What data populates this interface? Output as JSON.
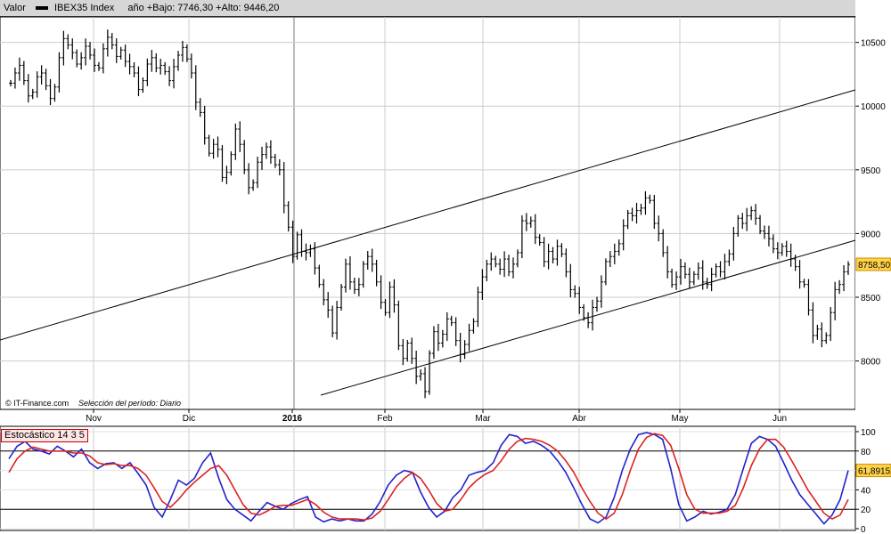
{
  "header": {
    "label_valor": "Valor",
    "series_name": "IBEX35 Index",
    "range_text": "año +Bajo: 7746,30 +Alto: 9446,20"
  },
  "footer": {
    "source": "© IT-Finance.com",
    "selection": "Selección del período: Diario"
  },
  "chart_data": [
    {
      "type": "ohlc",
      "name": "IBEX35 Index",
      "ylim": [
        7620,
        10700
      ],
      "y_ticks": [
        10500,
        10000,
        9500,
        9000,
        8500,
        8000
      ],
      "y_tick_labels": [
        "10500",
        "10000",
        "9500",
        "9000",
        "8500",
        "8000"
      ],
      "x_ticks": [
        "Nov",
        "Dic",
        "2016",
        "Feb",
        "Mar",
        "Abr",
        "May",
        "Jun"
      ],
      "last_value_label": "8758,50",
      "last_value": 8758.5,
      "grid": true,
      "closes": [
        10180,
        10260,
        10320,
        10200,
        10080,
        10110,
        10230,
        10260,
        10160,
        10060,
        10150,
        10380,
        10530,
        10480,
        10420,
        10330,
        10380,
        10470,
        10400,
        10320,
        10300,
        10450,
        10540,
        10480,
        10390,
        10440,
        10350,
        10310,
        10260,
        10130,
        10200,
        10330,
        10380,
        10300,
        10320,
        10270,
        10200,
        10310,
        10400,
        10460,
        10370,
        10260,
        10030,
        9950,
        9750,
        9630,
        9700,
        9660,
        9440,
        9480,
        9620,
        9820,
        9700,
        9500,
        9360,
        9400,
        9560,
        9620,
        9680,
        9600,
        9540,
        9500,
        9220,
        9050,
        8820,
        8990,
        8860,
        8850,
        8880,
        8730,
        8600,
        8480,
        8400,
        8220,
        8420,
        8580,
        8760,
        8620,
        8560,
        8600,
        8760,
        8820,
        8760,
        8620,
        8460,
        8380,
        8580,
        8440,
        8120,
        8020,
        8140,
        8020,
        7880,
        7900,
        7760,
        8060,
        8230,
        8140,
        8210,
        8330,
        8300,
        8160,
        8050,
        8130,
        8240,
        8310,
        8540,
        8660,
        8760,
        8800,
        8760,
        8720,
        8800,
        8700,
        8760,
        8850,
        9100,
        9080,
        9100,
        8970,
        8930,
        8780,
        8860,
        8800,
        8900,
        8840,
        8700,
        8560,
        8530,
        8420,
        8340,
        8300,
        8420,
        8470,
        8620,
        8780,
        8820,
        8860,
        8920,
        9060,
        9160,
        9140,
        9180,
        9200,
        9280,
        9260,
        9080,
        9000,
        8850,
        8700,
        8600,
        8660,
        8740,
        8680,
        8620,
        8680,
        8730,
        8620,
        8600,
        8680,
        8740,
        8700,
        8780,
        8840,
        9000,
        9120,
        9080,
        9140,
        9180,
        9120,
        9020,
        9000,
        8960,
        8880,
        8850,
        8900,
        8860,
        8800,
        8740,
        8620,
        8600,
        8400,
        8200,
        8250,
        8160,
        8200,
        8380,
        8560,
        8600,
        8700,
        8758
      ]
    },
    {
      "type": "line",
      "title": "Estocástico 14 3 5",
      "ylim": [
        0,
        100
      ],
      "y_ticks": [
        100,
        80,
        60,
        40,
        20,
        0
      ],
      "y_tick_labels": [
        "100",
        "80",
        "60",
        "40",
        "20",
        "0"
      ],
      "reference_lines": [
        20,
        80
      ],
      "last_value_label": "61,8915",
      "series": [
        {
          "color": "#2222cc",
          "values": [
            72,
            85,
            90,
            82,
            80,
            77,
            85,
            80,
            74,
            82,
            68,
            62,
            67,
            68,
            62,
            68,
            57,
            45,
            22,
            12,
            30,
            50,
            45,
            52,
            68,
            78,
            52,
            30,
            20,
            14,
            8,
            18,
            27,
            23,
            20,
            26,
            30,
            33,
            12,
            7,
            10,
            8,
            10,
            8,
            8,
            15,
            28,
            45,
            55,
            60,
            58,
            38,
            22,
            12,
            18,
            32,
            40,
            55,
            58,
            60,
            68,
            86,
            97,
            95,
            88,
            90,
            86,
            80,
            70,
            58,
            42,
            25,
            10,
            6,
            12,
            32,
            60,
            82,
            97,
            99,
            97,
            92,
            62,
            25,
            8,
            12,
            18,
            15,
            17,
            20,
            35,
            62,
            88,
            95,
            92,
            85,
            68,
            50,
            35,
            25,
            15,
            5,
            14,
            30,
            60
          ]
        },
        {
          "color": "#dd2222",
          "values": [
            58,
            72,
            80,
            84,
            82,
            80,
            80,
            80,
            78,
            78,
            75,
            68,
            66,
            67,
            65,
            65,
            62,
            55,
            42,
            28,
            22,
            30,
            40,
            48,
            55,
            62,
            65,
            55,
            40,
            25,
            16,
            14,
            18,
            23,
            24,
            24,
            27,
            30,
            25,
            17,
            12,
            10,
            10,
            10,
            9,
            11,
            18,
            30,
            43,
            52,
            58,
            52,
            40,
            26,
            18,
            20,
            30,
            42,
            50,
            56,
            60,
            70,
            82,
            90,
            93,
            92,
            90,
            86,
            80,
            70,
            58,
            42,
            28,
            16,
            10,
            16,
            35,
            60,
            82,
            94,
            98,
            96,
            86,
            62,
            35,
            20,
            16,
            16,
            16,
            18,
            24,
            42,
            65,
            82,
            92,
            92,
            84,
            70,
            55,
            40,
            28,
            16,
            10,
            14,
            30
          ]
        }
      ]
    }
  ]
}
